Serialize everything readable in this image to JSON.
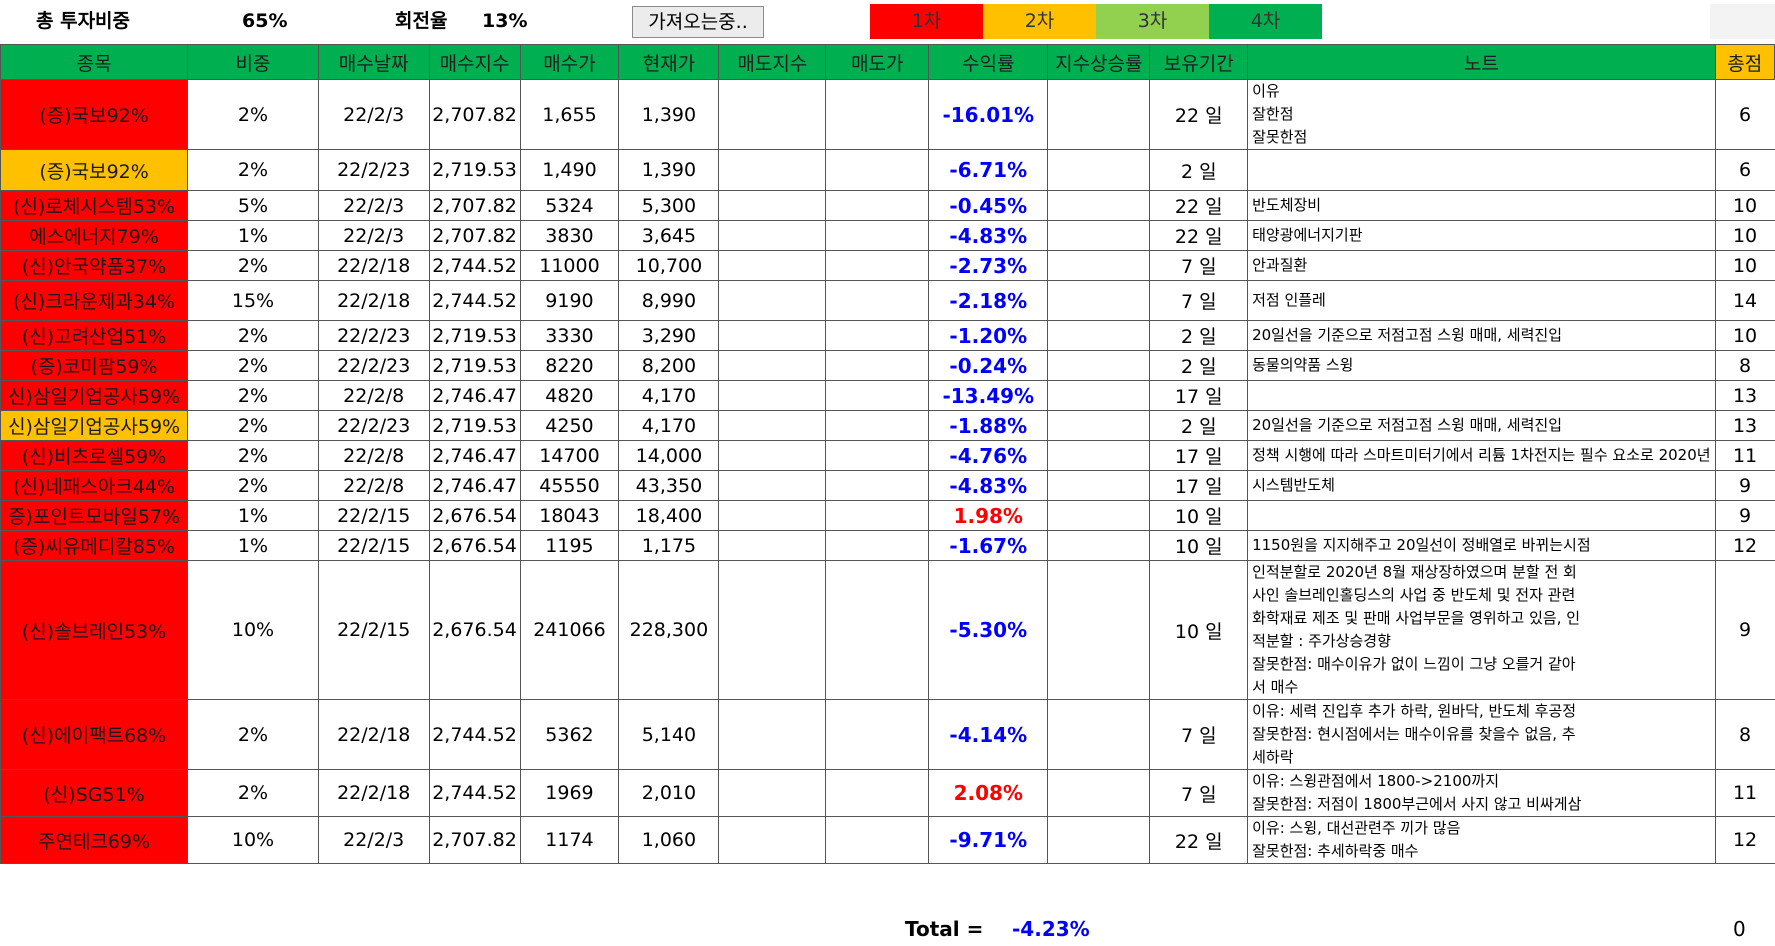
{
  "summary": {
    "invest_label": "총 투자비중",
    "invest_value": "65%",
    "turnover_label": "회전율",
    "turnover_value": "13%",
    "fetch_button": "가져오는중.."
  },
  "legend": [
    {
      "label": "1차",
      "color": "#ff0000"
    },
    {
      "label": "2차",
      "color": "#ffc000"
    },
    {
      "label": "3차",
      "color": "#92d050"
    },
    {
      "label": "4차",
      "color": "#00b050"
    }
  ],
  "columns": [
    "종목",
    "비중",
    "매수날짜",
    "매수지수",
    "매수가",
    "현재가",
    "매도지수",
    "매도가",
    "수익률",
    "지수상승률",
    "보유기간",
    "노트",
    "총점"
  ],
  "rows": [
    {
      "name": "(증)국보92%",
      "level": 1,
      "weight": "2%",
      "date": "22/2/3",
      "buy_index": "2,707.82",
      "buy_price": "1,655",
      "cur_price": "1,390",
      "sell_index": "",
      "sell_price": "",
      "ret": "-16.01%",
      "ret_sign": "neg",
      "index_ret": "",
      "hold": "22 일",
      "note": [
        "이유",
        "잘한점",
        "잘못한점"
      ],
      "score": "6"
    },
    {
      "name": "(증)국보92%",
      "level": 2,
      "weight": "2%",
      "date": "22/2/23",
      "buy_index": "2,719.53",
      "buy_price": "1,490",
      "cur_price": "1,390",
      "sell_index": "",
      "sell_price": "",
      "ret": "-6.71%",
      "ret_sign": "neg",
      "index_ret": "",
      "hold": "2 일",
      "note": [],
      "score": "6"
    },
    {
      "name": "(신)로체시스템53%",
      "level": 1,
      "weight": "5%",
      "date": "22/2/3",
      "buy_index": "2,707.82",
      "buy_price": "5324",
      "cur_price": "5,300",
      "sell_index": "",
      "sell_price": "",
      "ret": "-0.45%",
      "ret_sign": "neg",
      "index_ret": "",
      "hold": "22 일",
      "note": [
        "반도체장비"
      ],
      "score": "10"
    },
    {
      "name": "에스에너지79%",
      "level": 1,
      "weight": "1%",
      "date": "22/2/3",
      "buy_index": "2,707.82",
      "buy_price": "3830",
      "cur_price": "3,645",
      "sell_index": "",
      "sell_price": "",
      "ret": "-4.83%",
      "ret_sign": "neg",
      "index_ret": "",
      "hold": "22 일",
      "note": [
        "태양광에너지기판"
      ],
      "score": "10"
    },
    {
      "name": "(신)안국약품37%",
      "level": 1,
      "weight": "2%",
      "date": "22/2/18",
      "buy_index": "2,744.52",
      "buy_price": "11000",
      "cur_price": "10,700",
      "sell_index": "",
      "sell_price": "",
      "ret": "-2.73%",
      "ret_sign": "neg",
      "index_ret": "",
      "hold": "7 일",
      "note": [
        "안과질환"
      ],
      "score": "10"
    },
    {
      "name": "(신)크라운제과34%",
      "level": 1,
      "weight": "15%",
      "date": "22/2/18",
      "buy_index": "2,744.52",
      "buy_price": "9190",
      "cur_price": "8,990",
      "sell_index": "",
      "sell_price": "",
      "ret": "-2.18%",
      "ret_sign": "neg",
      "index_ret": "",
      "hold": "7 일",
      "note": [
        "저점 인플레"
      ],
      "score": "14"
    },
    {
      "name": "(신)고려산업51%",
      "level": 1,
      "weight": "2%",
      "date": "22/2/23",
      "buy_index": "2,719.53",
      "buy_price": "3330",
      "cur_price": "3,290",
      "sell_index": "",
      "sell_price": "",
      "ret": "-1.20%",
      "ret_sign": "neg",
      "index_ret": "",
      "hold": "2 일",
      "note": [
        "20일선을 기준으로 저점고점 스윙 매매, 세력진입"
      ],
      "score": "10"
    },
    {
      "name": "(증)코미팜59%",
      "level": 1,
      "weight": "2%",
      "date": "22/2/23",
      "buy_index": "2,719.53",
      "buy_price": "8220",
      "cur_price": "8,200",
      "sell_index": "",
      "sell_price": "",
      "ret": "-0.24%",
      "ret_sign": "neg",
      "index_ret": "",
      "hold": "2 일",
      "note": [
        "동물의약품 스윙"
      ],
      "score": "8"
    },
    {
      "name": "신)삼일기업공사59%",
      "level": 1,
      "weight": "2%",
      "date": "22/2/8",
      "buy_index": "2,746.47",
      "buy_price": "4820",
      "cur_price": "4,170",
      "sell_index": "",
      "sell_price": "",
      "ret": "-13.49%",
      "ret_sign": "neg",
      "index_ret": "",
      "hold": "17 일",
      "note": [],
      "score": "13"
    },
    {
      "name": "신)삼일기업공사59%",
      "level": 2,
      "weight": "2%",
      "date": "22/2/23",
      "buy_index": "2,719.53",
      "buy_price": "4250",
      "cur_price": "4,170",
      "sell_index": "",
      "sell_price": "",
      "ret": "-1.88%",
      "ret_sign": "neg",
      "index_ret": "",
      "hold": "2 일",
      "note": [
        "20일선을 기준으로 저점고점 스윙 매매, 세력진입"
      ],
      "score": "13"
    },
    {
      "name": "(신)비츠로셀59%",
      "level": 1,
      "weight": "2%",
      "date": "22/2/8",
      "buy_index": "2,746.47",
      "buy_price": "14700",
      "cur_price": "14,000",
      "sell_index": "",
      "sell_price": "",
      "ret": "-4.76%",
      "ret_sign": "neg",
      "index_ret": "",
      "hold": "17 일",
      "note": [
        "정책 시행에 따라 스마트미터기에서 리튬 1차전지는 필수 요소로 2020년"
      ],
      "score": "11"
    },
    {
      "name": "(신)네패스아크44%",
      "level": 1,
      "weight": "2%",
      "date": "22/2/8",
      "buy_index": "2,746.47",
      "buy_price": "45550",
      "cur_price": "43,350",
      "sell_index": "",
      "sell_price": "",
      "ret": "-4.83%",
      "ret_sign": "neg",
      "index_ret": "",
      "hold": "17 일",
      "note": [
        "시스템반도체"
      ],
      "score": "9"
    },
    {
      "name": "증)포인트모바일57%",
      "level": 1,
      "weight": "1%",
      "date": "22/2/15",
      "buy_index": "2,676.54",
      "buy_price": "18043",
      "cur_price": "18,400",
      "sell_index": "",
      "sell_price": "",
      "ret": "1.98%",
      "ret_sign": "pos",
      "index_ret": "",
      "hold": "10 일",
      "note": [],
      "score": "9"
    },
    {
      "name": "(증)씨유메디칼85%",
      "level": 1,
      "weight": "1%",
      "date": "22/2/15",
      "buy_index": "2,676.54",
      "buy_price": "1195",
      "cur_price": "1,175",
      "sell_index": "",
      "sell_price": "",
      "ret": "-1.67%",
      "ret_sign": "neg",
      "index_ret": "",
      "hold": "10 일",
      "note": [
        "1150원을 지지해주고 20일선이 정배열로 바뀌는시점"
      ],
      "score": "12"
    },
    {
      "name": "(신)솔브레인53%",
      "level": 1,
      "weight": "10%",
      "date": "22/2/15",
      "buy_index": "2,676.54",
      "buy_price": "241066",
      "cur_price": "228,300",
      "sell_index": "",
      "sell_price": "",
      "ret": "-5.30%",
      "ret_sign": "neg",
      "index_ret": "",
      "hold": "10 일",
      "note": [
        "인적분할로 2020년 8월 재상장하였으며 분할 전 회",
        "사인 솔브레인홀딩스의 사업 중 반도체 및 전자 관련",
        "화학재료 제조 및 판매 사업부문을 영위하고 있음, 인",
        "적분할 : 주가상승경향",
        "잘못한점: 매수이유가 없이 느낌이 그냥 오를거 같아",
        "서 매수"
      ],
      "score": "9"
    },
    {
      "name": "(신)에이팩트68%",
      "level": 1,
      "weight": "2%",
      "date": "22/2/18",
      "buy_index": "2,744.52",
      "buy_price": "5362",
      "cur_price": "5,140",
      "sell_index": "",
      "sell_price": "",
      "ret": "-4.14%",
      "ret_sign": "neg",
      "index_ret": "",
      "hold": "7 일",
      "note": [
        "이유: 세력 진입후 추가 하락, 원바닥, 반도체 후공정",
        "잘못한점: 현시점에서는 매수이유를 찾을수 없음, 추",
        "세하락"
      ],
      "score": "8"
    },
    {
      "name": "(신)SG51%",
      "level": 1,
      "weight": "2%",
      "date": "22/2/18",
      "buy_index": "2,744.52",
      "buy_price": "1969",
      "cur_price": "2,010",
      "sell_index": "",
      "sell_price": "",
      "ret": "2.08%",
      "ret_sign": "pos",
      "index_ret": "",
      "hold": "7 일",
      "note": [
        "이유: 스윙관점에서 1800->2100까지",
        "잘못한점: 저점이 1800부근에서 사지 않고 비싸게삼"
      ],
      "score": "11"
    },
    {
      "name": "주연테크69%",
      "level": 1,
      "weight": "10%",
      "date": "22/2/3",
      "buy_index": "2,707.82",
      "buy_price": "1174",
      "cur_price": "1,060",
      "sell_index": "",
      "sell_price": "",
      "ret": "-9.71%",
      "ret_sign": "neg",
      "index_ret": "",
      "hold": "22 일",
      "note": [
        "이유: 스윙, 대선관련주 끼가 많음",
        "잘못한점: 추세하락중 매수"
      ],
      "score": "12"
    }
  ],
  "footer": {
    "total_label": "Total =",
    "total_value": "-4.23%",
    "score_total": "0"
  }
}
